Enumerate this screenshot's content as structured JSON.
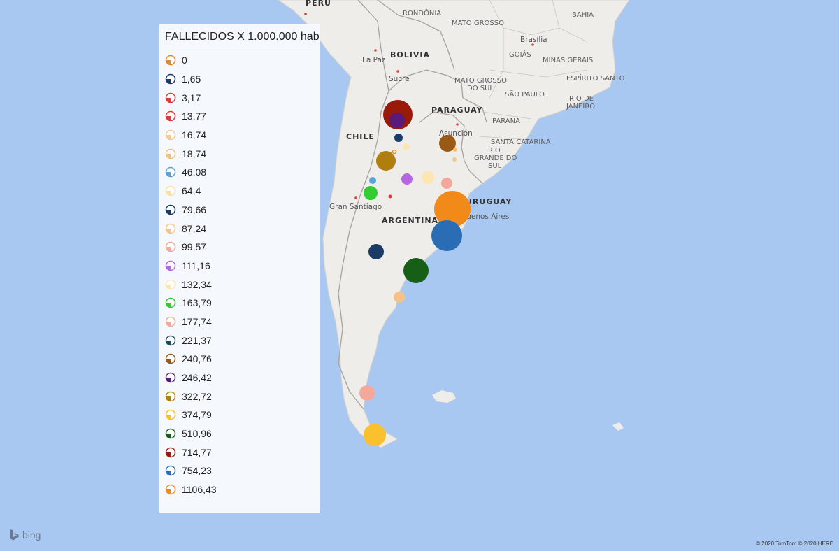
{
  "legend": {
    "title": "FALLECIDOS X 1.000.000 hab",
    "items": [
      {
        "label": "0",
        "color": "#e8862a"
      },
      {
        "label": "1,65",
        "color": "#1b3b66"
      },
      {
        "label": "3,17",
        "color": "#e53935"
      },
      {
        "label": "13,77",
        "color": "#e53935"
      },
      {
        "label": "16,74",
        "color": "#f6c890"
      },
      {
        "label": "18,74",
        "color": "#f3c07a"
      },
      {
        "label": "46,08",
        "color": "#5aa2d8"
      },
      {
        "label": "64,4",
        "color": "#fbe0a4"
      },
      {
        "label": "79,66",
        "color": "#1b3b66"
      },
      {
        "label": "87,24",
        "color": "#f5c28a"
      },
      {
        "label": "99,57",
        "color": "#f4a89b"
      },
      {
        "label": "111,16",
        "color": "#b665e3"
      },
      {
        "label": "132,34",
        "color": "#fde7b0"
      },
      {
        "label": "163,79",
        "color": "#33cc33"
      },
      {
        "label": "177,74",
        "color": "#f4a89b"
      },
      {
        "label": "221,37",
        "color": "#1e4a5e"
      },
      {
        "label": "240,76",
        "color": "#9a5a16"
      },
      {
        "label": "246,42",
        "color": "#5a1a7a"
      },
      {
        "label": "322,72",
        "color": "#b07e0c"
      },
      {
        "label": "374,79",
        "color": "#fbc02d"
      },
      {
        "label": "510,96",
        "color": "#175e17"
      },
      {
        "label": "714,77",
        "color": "#9a1a0a"
      },
      {
        "label": "754,23",
        "color": "#2a6db5"
      },
      {
        "label": "1106,43",
        "color": "#f28a1a"
      }
    ]
  },
  "map_labels": {
    "peru": "PERÚ",
    "bolivia": "BOLIVIA",
    "chile": "CHILE",
    "paraguay": "PARAGUAY",
    "argentina": "ARGENTINA",
    "uruguay": "URUGUAY",
    "rondonia": "RONDÔNIA",
    "mato_grosso": "MATO GROSSO",
    "bahia": "BAHIA",
    "brasilia": "Brasília",
    "goias": "GOIÁS",
    "minas_gerais": "MINAS GERAIS",
    "espirito_santo": "ESPÍRITO SANTO",
    "la_paz": "La Paz",
    "sucre": "Sucre",
    "mato_grosso_sul_1": "MATO GROSSO",
    "mato_grosso_sul_2": "DO SUL",
    "sao_paulo": "SÃO PAULO",
    "rio_janeiro_1": "RIO DE",
    "rio_janeiro_2": "JANEIRO",
    "parana": "PARANÁ",
    "asuncion": "Asunción",
    "santa_catarina": "SANTA CATARINA",
    "rio_grande_1": "RIO",
    "rio_grande_2": "GRANDE DO",
    "rio_grande_3": "SUL",
    "gran_santiago": "Gran Santiago",
    "buenos_aires": "Buenos Aires"
  },
  "bing": {
    "label": "bing"
  },
  "attribution": "© 2020 TomTom © 2020 HERE"
}
